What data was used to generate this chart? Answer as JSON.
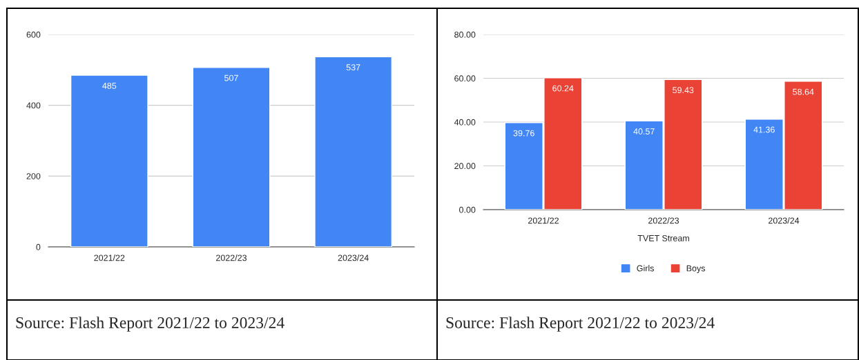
{
  "chart_data": [
    {
      "type": "bar",
      "categories": [
        "2021/22",
        "2022/23",
        "2023/24"
      ],
      "values": [
        485,
        507,
        537
      ],
      "color": "#4285f4",
      "ylim": [
        0,
        600
      ],
      "yticks": [
        0,
        200,
        400,
        600
      ],
      "grid": "y",
      "data_labels": true,
      "legend": false,
      "annotations": [
        "Source: Flash Report 2021/22 to 2023/24"
      ]
    },
    {
      "type": "bar",
      "categories": [
        "2021/22",
        "2022/23",
        "2023/24"
      ],
      "xlabel": "TVET Stream",
      "series": [
        {
          "name": "Girls",
          "color": "#4285f4",
          "values": [
            39.76,
            40.57,
            41.36
          ]
        },
        {
          "name": "Boys",
          "color": "#ea4335",
          "values": [
            60.24,
            59.43,
            58.64
          ]
        }
      ],
      "ylim": [
        0,
        80
      ],
      "yticks": [
        {
          "value": 0,
          "label": "0.00"
        },
        {
          "value": 20,
          "label": "20.00"
        },
        {
          "value": 40,
          "label": "40.00"
        },
        {
          "value": 60,
          "label": "60.00"
        },
        {
          "value": 80,
          "label": "80.00"
        }
      ],
      "grid": "y",
      "data_labels": true,
      "legend": "bottom",
      "annotations": [
        "Source: Flash Report 2021/22 to 2023/24"
      ]
    }
  ]
}
